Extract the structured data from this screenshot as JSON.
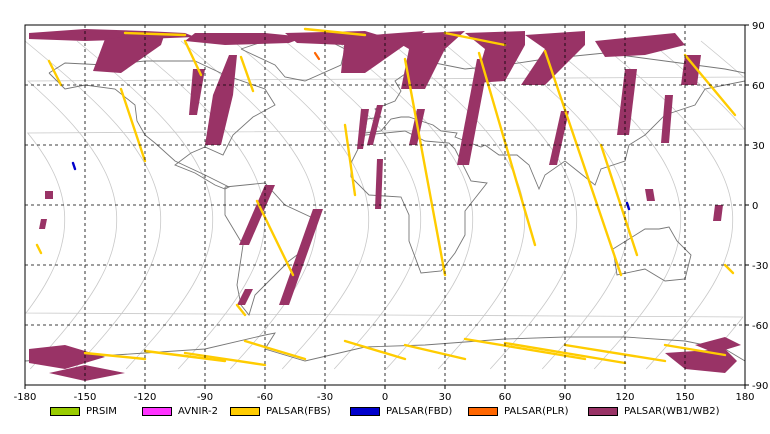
{
  "map": {
    "lon_ticks": [
      "-180",
      "-150",
      "-120",
      "-90",
      "-60",
      "-30",
      "0",
      "30",
      "60",
      "90",
      "120",
      "150",
      "180"
    ],
    "lat_ticks": [
      "90",
      "60",
      "30",
      "0",
      "-30",
      "-60",
      "-90"
    ],
    "lon_values": [
      -180,
      -150,
      -120,
      -90,
      -60,
      -30,
      0,
      30,
      60,
      90,
      120,
      150,
      180
    ],
    "lat_values": [
      90,
      60,
      30,
      0,
      -30,
      -60,
      -90
    ],
    "lon_range": [
      -180,
      180
    ],
    "lat_range": [
      -90,
      90
    ],
    "grid": true,
    "colors": {
      "grid": "#000000",
      "orbit": "#c8c8c8",
      "coast": "#777777"
    }
  },
  "legend": {
    "items": [
      {
        "label": "PRSIM",
        "color": "#99cc00"
      },
      {
        "label": "AVNIR-2",
        "color": "#ff33ff"
      },
      {
        "label": "PALSAR(FBS)",
        "color": "#ffcc00"
      },
      {
        "label": "PALSAR(FBD)",
        "color": "#0000cc"
      },
      {
        "label": "PALSAR(PLR)",
        "color": "#ff6600"
      },
      {
        "label": "PALSAR(WB1/WB2)",
        "color": "#993366"
      }
    ]
  },
  "coverage": {
    "wb_swaths": [
      {
        "name": "arctic-band",
        "points": [
          [
            -178,
            86
          ],
          [
            -150,
            88
          ],
          [
            -120,
            87
          ],
          [
            -100,
            86
          ],
          [
            -95,
            84
          ],
          [
            -120,
            83
          ],
          [
            -150,
            82
          ],
          [
            -178,
            83
          ]
        ]
      },
      {
        "name": "north-pacific",
        "points": [
          [
            -140,
            83
          ],
          [
            -110,
            86
          ],
          [
            -112,
            80
          ],
          [
            -132,
            66
          ],
          [
            -146,
            67
          ]
        ]
      },
      {
        "name": "canada-arctic",
        "points": [
          [
            -95,
            86
          ],
          [
            -60,
            86
          ],
          [
            -40,
            84
          ],
          [
            -48,
            81
          ],
          [
            -80,
            80
          ],
          [
            -100,
            82
          ]
        ]
      },
      {
        "name": "greenland-east",
        "points": [
          [
            -50,
            86
          ],
          [
            -10,
            87
          ],
          [
            0,
            84
          ],
          [
            -20,
            80
          ],
          [
            -44,
            81
          ]
        ]
      },
      {
        "name": "north-america-east",
        "points": [
          [
            -78,
            75
          ],
          [
            -74,
            75
          ],
          [
            -76,
            55
          ],
          [
            -82,
            30
          ],
          [
            -90,
            30
          ],
          [
            -86,
            55
          ]
        ]
      },
      {
        "name": "north-america-west",
        "points": [
          [
            -96,
            68
          ],
          [
            -90,
            68
          ],
          [
            -94,
            45
          ],
          [
            -98,
            45
          ]
        ]
      },
      {
        "name": "scandinavia",
        "points": [
          [
            -20,
            84
          ],
          [
            20,
            87
          ],
          [
            10,
            80
          ],
          [
            -10,
            66
          ],
          [
            -22,
            66
          ]
        ]
      },
      {
        "name": "europe-strip",
        "points": [
          [
            -4,
            50
          ],
          [
            -1,
            50
          ],
          [
            -6,
            30
          ],
          [
            -9,
            30
          ]
        ]
      },
      {
        "name": "iberia",
        "points": [
          [
            -12,
            48
          ],
          [
            -8,
            48
          ],
          [
            -11,
            28
          ],
          [
            -14,
            28
          ]
        ]
      },
      {
        "name": "russia-west",
        "points": [
          [
            0,
            85
          ],
          [
            40,
            87
          ],
          [
            30,
            78
          ],
          [
            20,
            58
          ],
          [
            8,
            58
          ],
          [
            12,
            78
          ]
        ]
      },
      {
        "name": "mediterranean",
        "points": [
          [
            16,
            48
          ],
          [
            20,
            48
          ],
          [
            16,
            30
          ],
          [
            12,
            30
          ]
        ]
      },
      {
        "name": "russia-central",
        "points": [
          [
            40,
            86
          ],
          [
            70,
            87
          ],
          [
            70,
            80
          ],
          [
            60,
            62
          ],
          [
            45,
            61
          ],
          [
            50,
            78
          ]
        ]
      },
      {
        "name": "siberia-west",
        "points": [
          [
            70,
            85
          ],
          [
            100,
            87
          ],
          [
            100,
            80
          ],
          [
            80,
            60
          ],
          [
            68,
            60
          ],
          [
            80,
            78
          ]
        ]
      },
      {
        "name": "siberia-east",
        "points": [
          [
            105,
            82
          ],
          [
            145,
            86
          ],
          [
            150,
            80
          ],
          [
            130,
            75
          ],
          [
            110,
            74
          ]
        ]
      },
      {
        "name": "india-strip",
        "points": [
          [
            46,
            73
          ],
          [
            52,
            73
          ],
          [
            42,
            20
          ],
          [
            36,
            20
          ]
        ]
      },
      {
        "name": "asia-strip",
        "points": [
          [
            88,
            47
          ],
          [
            92,
            47
          ],
          [
            86,
            20
          ],
          [
            82,
            20
          ]
        ]
      },
      {
        "name": "east-asia-1",
        "points": [
          [
            120,
            68
          ],
          [
            126,
            68
          ],
          [
            122,
            35
          ],
          [
            116,
            35
          ]
        ]
      },
      {
        "name": "east-asia-2",
        "points": [
          [
            140,
            55
          ],
          [
            144,
            55
          ],
          [
            142,
            31
          ],
          [
            138,
            31
          ]
        ]
      },
      {
        "name": "kamchatka",
        "points": [
          [
            150,
            75
          ],
          [
            158,
            75
          ],
          [
            156,
            60
          ],
          [
            148,
            60
          ]
        ]
      },
      {
        "name": "west-africa",
        "points": [
          [
            -4,
            23
          ],
          [
            -1,
            23
          ],
          [
            -2,
            -2
          ],
          [
            -5,
            -2
          ]
        ]
      },
      {
        "name": "south-america-1",
        "points": [
          [
            -60,
            10
          ],
          [
            -55,
            10
          ],
          [
            -68,
            -20
          ],
          [
            -73,
            -20
          ]
        ]
      },
      {
        "name": "south-america-2",
        "points": [
          [
            -36,
            -2
          ],
          [
            -31,
            -2
          ],
          [
            -48,
            -50
          ],
          [
            -53,
            -50
          ]
        ]
      },
      {
        "name": "south-america-3",
        "points": [
          [
            -70,
            -42
          ],
          [
            -66,
            -42
          ],
          [
            -70,
            -50
          ],
          [
            -74,
            -50
          ]
        ]
      },
      {
        "name": "hawaii-1",
        "points": [
          [
            -170,
            7
          ],
          [
            -166,
            7
          ],
          [
            -166,
            3
          ],
          [
            -170,
            3
          ]
        ]
      },
      {
        "name": "hawaii-2",
        "points": [
          [
            -172,
            -7
          ],
          [
            -169,
            -7
          ],
          [
            -170,
            -12
          ],
          [
            -173,
            -12
          ]
        ]
      },
      {
        "name": "pacific-east",
        "points": [
          [
            130,
            8
          ],
          [
            134,
            8
          ],
          [
            135,
            2
          ],
          [
            131,
            2
          ]
        ]
      },
      {
        "name": "pacific-east-2",
        "points": [
          [
            165,
            0
          ],
          [
            169,
            0
          ],
          [
            168,
            -8
          ],
          [
            164,
            -8
          ]
        ]
      },
      {
        "name": "antarctic-west",
        "points": [
          [
            -178,
            -72
          ],
          [
            -160,
            -70
          ],
          [
            -140,
            -76
          ],
          [
            -160,
            -82
          ],
          [
            -178,
            -79
          ]
        ]
      },
      {
        "name": "antarctic-west-2",
        "points": [
          [
            -168,
            -84
          ],
          [
            -150,
            -80
          ],
          [
            -130,
            -84
          ],
          [
            -150,
            -88
          ]
        ]
      },
      {
        "name": "antarctic-east",
        "points": [
          [
            140,
            -74
          ],
          [
            170,
            -72
          ],
          [
            176,
            -78
          ],
          [
            170,
            -84
          ],
          [
            150,
            -82
          ]
        ]
      },
      {
        "name": "antarctic-east-2",
        "points": [
          [
            155,
            -70
          ],
          [
            170,
            -66
          ],
          [
            178,
            -70
          ],
          [
            165,
            -74
          ]
        ]
      }
    ],
    "fbs_swaths": [
      {
        "name": "fbs-1",
        "points": [
          [
            -168,
            72
          ],
          [
            -162,
            60
          ]
        ]
      },
      {
        "name": "fbs-2",
        "points": [
          [
            -100,
            82
          ],
          [
            -92,
            65
          ]
        ]
      },
      {
        "name": "fbs-3",
        "points": [
          [
            -132,
            58
          ],
          [
            -120,
            22
          ]
        ]
      },
      {
        "name": "fbs-4",
        "points": [
          [
            -72,
            74
          ],
          [
            -66,
            57
          ]
        ]
      },
      {
        "name": "fbs-5",
        "points": [
          [
            -64,
            2
          ],
          [
            -46,
            -35
          ]
        ]
      },
      {
        "name": "fbs-6",
        "points": [
          [
            -20,
            40
          ],
          [
            -15,
            5
          ]
        ]
      },
      {
        "name": "fbs-7",
        "points": [
          [
            10,
            73
          ],
          [
            30,
            -35
          ]
        ]
      },
      {
        "name": "fbs-8",
        "points": [
          [
            47,
            76
          ],
          [
            75,
            -20
          ]
        ]
      },
      {
        "name": "fbs-9",
        "points": [
          [
            80,
            77
          ],
          [
            118,
            -35
          ]
        ]
      },
      {
        "name": "fbs-10",
        "points": [
          [
            150,
            75
          ],
          [
            175,
            45
          ]
        ]
      },
      {
        "name": "fbs-11",
        "points": [
          [
            108,
            30
          ],
          [
            126,
            -25
          ]
        ]
      },
      {
        "name": "fbs-12",
        "points": [
          [
            -74,
            -50
          ],
          [
            -70,
            -55
          ]
        ]
      },
      {
        "name": "fbs-13",
        "points": [
          [
            170,
            -30
          ],
          [
            174,
            -34
          ]
        ]
      },
      {
        "name": "fbs-14",
        "points": [
          [
            -174,
            -20
          ],
          [
            -172,
            -24
          ]
        ]
      },
      {
        "name": "fbs-ant-1",
        "points": [
          [
            -150,
            -74
          ],
          [
            -120,
            -77
          ]
        ]
      },
      {
        "name": "fbs-ant-2",
        "points": [
          [
            -120,
            -73
          ],
          [
            -80,
            -78
          ]
        ]
      },
      {
        "name": "fbs-ant-3",
        "points": [
          [
            -100,
            -74
          ],
          [
            -60,
            -80
          ]
        ]
      },
      {
        "name": "fbs-ant-4",
        "points": [
          [
            -70,
            -68
          ],
          [
            -40,
            -77
          ]
        ]
      },
      {
        "name": "fbs-ant-5",
        "points": [
          [
            -20,
            -68
          ],
          [
            10,
            -77
          ]
        ]
      },
      {
        "name": "fbs-ant-6",
        "points": [
          [
            10,
            -70
          ],
          [
            40,
            -77
          ]
        ]
      },
      {
        "name": "fbs-ant-7",
        "points": [
          [
            40,
            -67
          ],
          [
            100,
            -77
          ]
        ]
      },
      {
        "name": "fbs-ant-8",
        "points": [
          [
            60,
            -69
          ],
          [
            120,
            -79
          ]
        ]
      },
      {
        "name": "fbs-ant-9",
        "points": [
          [
            90,
            -70
          ],
          [
            140,
            -78
          ]
        ]
      },
      {
        "name": "fbs-ant-10",
        "points": [
          [
            140,
            -70
          ],
          [
            170,
            -75
          ]
        ]
      },
      {
        "name": "fbs-arc-1",
        "points": [
          [
            -130,
            86
          ],
          [
            -100,
            85
          ]
        ]
      },
      {
        "name": "fbs-arc-2",
        "points": [
          [
            -40,
            88
          ],
          [
            -10,
            85
          ]
        ]
      },
      {
        "name": "fbs-arc-3",
        "points": [
          [
            30,
            86
          ],
          [
            60,
            80
          ]
        ]
      }
    ],
    "fbd_marks": [
      {
        "name": "fbd-1",
        "points": [
          [
            -156,
            21
          ],
          [
            -155,
            18
          ]
        ]
      },
      {
        "name": "fbd-2",
        "points": [
          [
            121,
            1
          ],
          [
            122,
            -2
          ]
        ]
      }
    ],
    "plr_marks": [
      {
        "name": "plr-1",
        "points": [
          [
            -35,
            76
          ],
          [
            -33,
            73
          ]
        ]
      }
    ]
  }
}
